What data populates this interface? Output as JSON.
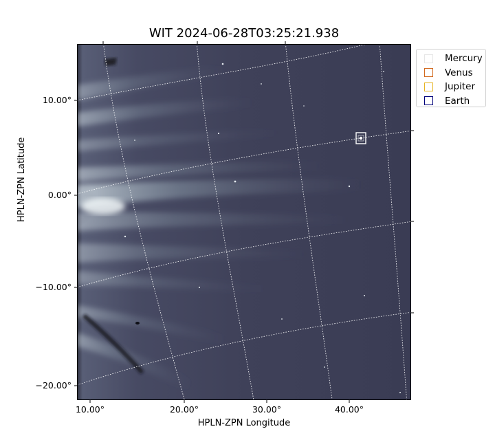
{
  "figure": {
    "title": "WIT 2024-06-28T03:25:21.938",
    "xlabel": "HPLN-ZPN Longitude",
    "ylabel": "HPLN-ZPN Latitude",
    "x_ticks": [
      "10.00°",
      "20.00°",
      "30.00°",
      "40.00°"
    ],
    "y_ticks": [
      "10.00°",
      "0.00°",
      "−10.00°",
      "−20.00°"
    ]
  },
  "legend": {
    "items": [
      {
        "label": "Mercury",
        "color": "#e6e6e6"
      },
      {
        "label": "Venus",
        "color": "#d2691e"
      },
      {
        "label": "Jupiter",
        "color": "#e6b422"
      },
      {
        "label": "Earth",
        "color": "#00007a"
      }
    ]
  },
  "image": {
    "background_color": "#3c3d55",
    "streamer_color": "#d7e5ea",
    "grid_color": "#ffffff"
  }
}
